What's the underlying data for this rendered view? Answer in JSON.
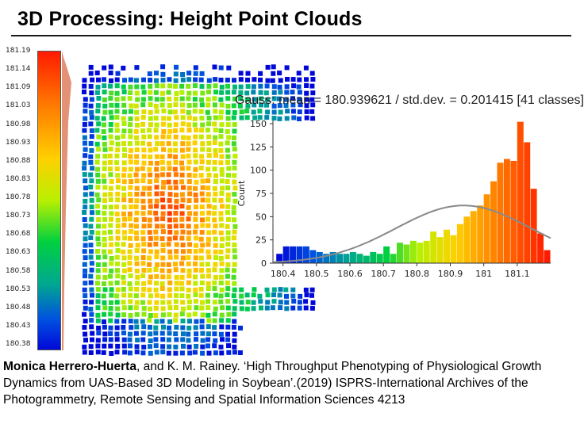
{
  "slide": {
    "title": "3D Processing: Height Point Clouds"
  },
  "colorbar": {
    "labels": [
      "181.19",
      "181.14",
      "181.09",
      "181.03",
      "180.98",
      "180.93",
      "180.88",
      "180.83",
      "180.78",
      "180.73",
      "180.68",
      "180.63",
      "180.58",
      "180.53",
      "180.48",
      "180.43",
      "180.38"
    ],
    "colors": [
      "#ff1a00",
      "#ff7a00",
      "#ffd000",
      "#b8f000",
      "#00d040",
      "#00a890",
      "#0050e0",
      "#0008d8"
    ]
  },
  "pointcloud": {
    "icon": "height-point-cloud"
  },
  "histogram": {
    "header": "Gauss: mean = 180.939621 / std.dev. = 0.201415 [41 classes]",
    "ylabel": "Count"
  },
  "chart_data": {
    "type": "bar",
    "title": "Gauss: mean = 180.939621 / std.dev. = 0.201415 [41 classes]",
    "ylabel": "Count",
    "xlabel": "",
    "xlim": [
      180.37,
      181.2
    ],
    "ylim": [
      0,
      150
    ],
    "yticks": [
      0,
      25,
      50,
      75,
      100,
      125,
      150
    ],
    "xtick_labels": [
      "180.4",
      "180.5",
      "180.6",
      "180.7",
      "180.8",
      "180.9",
      "181",
      "181.1"
    ],
    "xtick_values": [
      180.4,
      180.5,
      180.6,
      180.7,
      180.8,
      180.9,
      181.0,
      181.1
    ],
    "bin_start": 180.38,
    "bin_width": 0.02,
    "values": [
      10,
      18,
      18,
      18,
      18,
      14,
      12,
      10,
      12,
      10,
      10,
      12,
      10,
      8,
      12,
      10,
      18,
      10,
      22,
      20,
      24,
      22,
      24,
      34,
      28,
      36,
      30,
      42,
      50,
      56,
      62,
      74,
      88,
      108,
      112,
      110,
      152,
      130,
      80,
      32,
      14
    ],
    "gauss": {
      "mean": 180.939621,
      "std": 0.201415,
      "peak": 62
    }
  },
  "citation": {
    "author": "Monica Herrero-Huerta",
    "rest": ", and K. M. Rainey. ‘High Throughput Phenotyping of Physiological Growth Dynamics from UAS-Based 3D Modeling in Soybean’.(2019) ISPRS-International Archives of the Photogrammetry, Remote Sensing and Spatial Information Sciences 4213"
  }
}
